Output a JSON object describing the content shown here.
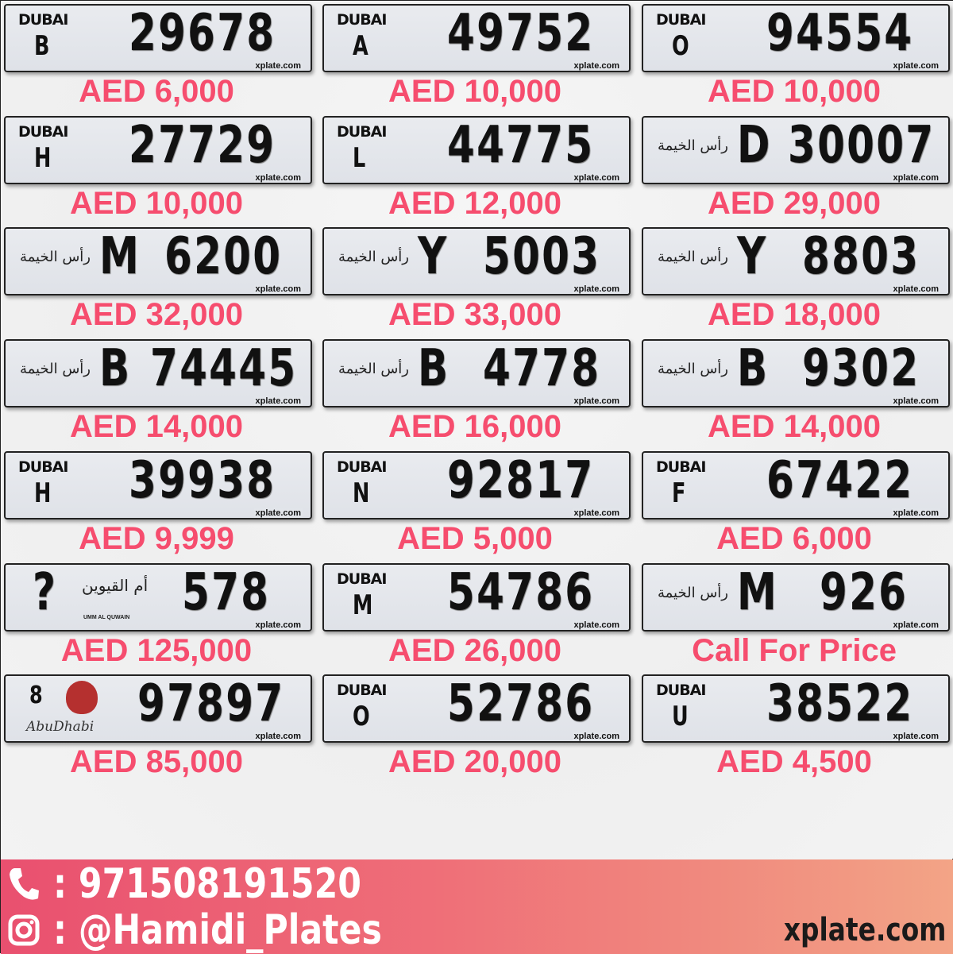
{
  "watermark": "xplate.com",
  "plates": [
    {
      "emirate": "dubai",
      "logo": "DUBAI",
      "code": "B",
      "number": "29678",
      "price": "AED 6,000"
    },
    {
      "emirate": "dubai",
      "logo": "DUBAI",
      "code": "A",
      "number": "49752",
      "price": "AED 10,000"
    },
    {
      "emirate": "dubai",
      "logo": "DUBAI",
      "code": "O",
      "number": "94554",
      "price": "AED 10,000"
    },
    {
      "emirate": "dubai",
      "logo": "DUBAI",
      "code": "H",
      "number": "27729",
      "price": "AED 10,000"
    },
    {
      "emirate": "dubai",
      "logo": "DUBAI",
      "code": "L",
      "number": "44775",
      "price": "AED 12,000"
    },
    {
      "emirate": "rak",
      "logo": "رأس الخيمة",
      "code": "D",
      "number": "30007",
      "price": "AED 29,000"
    },
    {
      "emirate": "rak",
      "logo": "رأس الخيمة",
      "code": "M",
      "number": "6200",
      "price": "AED 32,000"
    },
    {
      "emirate": "rak",
      "logo": "رأس الخيمة",
      "code": "Y",
      "number": "5003",
      "price": "AED 33,000"
    },
    {
      "emirate": "rak",
      "logo": "رأس الخيمة",
      "code": "Y",
      "number": "8803",
      "price": "AED 18,000"
    },
    {
      "emirate": "rak",
      "logo": "رأس الخيمة",
      "code": "B",
      "number": "74445",
      "price": "AED 14,000"
    },
    {
      "emirate": "rak",
      "logo": "رأس الخيمة",
      "code": "B",
      "number": "4778",
      "price": "AED 16,000"
    },
    {
      "emirate": "rak",
      "logo": "رأس الخيمة",
      "code": "B",
      "number": "9302",
      "price": "AED 14,000"
    },
    {
      "emirate": "dubai",
      "logo": "DUBAI",
      "code": "H",
      "number": "39938",
      "price": "AED 9,999"
    },
    {
      "emirate": "dubai",
      "logo": "DUBAI",
      "code": "N",
      "number": "92817",
      "price": "AED 5,000"
    },
    {
      "emirate": "dubai",
      "logo": "DUBAI",
      "code": "F",
      "number": "67422",
      "price": "AED 6,000"
    },
    {
      "emirate": "uaq",
      "logo": "أم القيوين",
      "logo_sub": "UMM AL QUWAIN",
      "code": "?",
      "number": "578",
      "price": "AED 125,000"
    },
    {
      "emirate": "dubai",
      "logo": "DUBAI",
      "code": "M",
      "number": "54786",
      "price": "AED 26,000"
    },
    {
      "emirate": "rak",
      "logo": "رأس الخيمة",
      "code": "M",
      "number": "926",
      "price": "Call For Price"
    },
    {
      "emirate": "abudhabi",
      "logo": "AbuDhabi",
      "code": "8",
      "number": "97897",
      "price": "AED 85,000"
    },
    {
      "emirate": "dubai",
      "logo": "DUBAI",
      "code": "O",
      "number": "52786",
      "price": "AED 20,000"
    },
    {
      "emirate": "dubai",
      "logo": "DUBAI",
      "code": "U",
      "number": "38522",
      "price": "AED 4,500"
    }
  ],
  "footer": {
    "phone_icon": "phone-icon",
    "phone": ": 971508191520",
    "instagram_icon": "instagram-icon",
    "instagram": ": @Hamidi_Plates",
    "site": "xplate.com"
  },
  "colors": {
    "price": "#f64d6e",
    "footer_start": "#e9506f",
    "footer_end": "#f3a486"
  }
}
